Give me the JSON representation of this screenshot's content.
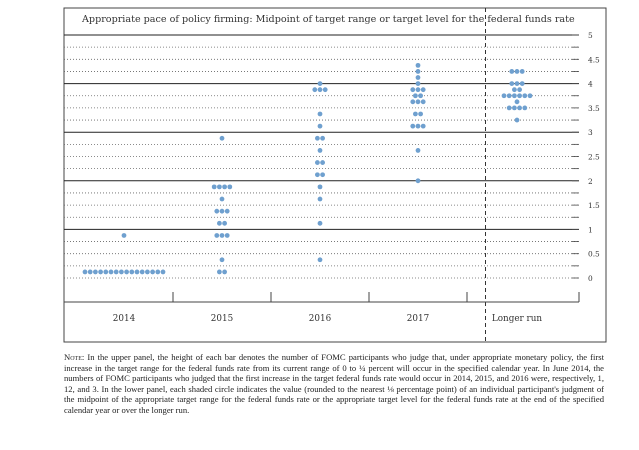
{
  "colors": {
    "dot": "#6fa0cf",
    "frame": "#444444",
    "grid_major": "#222222",
    "grid_minor": "#666666",
    "divider": "#333333",
    "text": "#333333"
  },
  "chart_data": {
    "type": "scatter",
    "title": "Appropriate pace of policy firming: Midpoint of target range or target level for the federal funds rate",
    "categories": [
      "2014",
      "2015",
      "2016",
      "2017",
      "Longer run"
    ],
    "y_ticks": [
      "0",
      "0.5",
      "1",
      "1.5",
      "2",
      "2.5",
      "3",
      "3.5",
      "4",
      "4.5",
      "5"
    ],
    "ylim": [
      0,
      5
    ],
    "grid": true,
    "divider_between": [
      "2017",
      "Longer run"
    ],
    "dots": {
      "2014": [
        {
          "y": 0.125,
          "n": 16
        },
        {
          "y": 0.875,
          "n": 1
        }
      ],
      "2015": [
        {
          "y": 0.125,
          "n": 2
        },
        {
          "y": 0.375,
          "n": 1
        },
        {
          "y": 0.875,
          "n": 3
        },
        {
          "y": 1.125,
          "n": 2
        },
        {
          "y": 1.375,
          "n": 3
        },
        {
          "y": 1.625,
          "n": 1
        },
        {
          "y": 1.875,
          "n": 4
        },
        {
          "y": 2.875,
          "n": 1
        }
      ],
      "2016": [
        {
          "y": 0.375,
          "n": 1
        },
        {
          "y": 1.125,
          "n": 1
        },
        {
          "y": 1.625,
          "n": 1
        },
        {
          "y": 1.875,
          "n": 1
        },
        {
          "y": 2.125,
          "n": 2
        },
        {
          "y": 2.375,
          "n": 2
        },
        {
          "y": 2.625,
          "n": 1
        },
        {
          "y": 2.875,
          "n": 2
        },
        {
          "y": 3.125,
          "n": 1
        },
        {
          "y": 3.375,
          "n": 1
        },
        {
          "y": 3.875,
          "n": 3
        },
        {
          "y": 4.0,
          "n": 1
        }
      ],
      "2017": [
        {
          "y": 2.0,
          "n": 1
        },
        {
          "y": 2.625,
          "n": 1
        },
        {
          "y": 3.125,
          "n": 3
        },
        {
          "y": 3.375,
          "n": 2
        },
        {
          "y": 3.625,
          "n": 3
        },
        {
          "y": 3.75,
          "n": 2
        },
        {
          "y": 3.875,
          "n": 3
        },
        {
          "y": 4.0,
          "n": 1
        },
        {
          "y": 4.125,
          "n": 1
        },
        {
          "y": 4.25,
          "n": 1
        },
        {
          "y": 4.375,
          "n": 1
        }
      ],
      "Longer run": [
        {
          "y": 3.25,
          "n": 1
        },
        {
          "y": 3.5,
          "n": 4
        },
        {
          "y": 3.625,
          "n": 1
        },
        {
          "y": 3.75,
          "n": 6
        },
        {
          "y": 3.875,
          "n": 2
        },
        {
          "y": 4.0,
          "n": 3
        },
        {
          "y": 4.25,
          "n": 3
        }
      ]
    }
  },
  "note": {
    "lead": "Note:",
    "text": "In the upper panel, the height of each bar denotes the number of FOMC participants who judge that, under appropriate monetary policy, the first increase in the target range for the federal funds rate from its current range of 0 to ¼ percent will occur in the specified calendar year. In June 2014, the numbers of FOMC participants who judged that the first increase in the target federal funds rate would occur in 2014, 2015, and 2016 were, respectively, 1, 12, and 3. In the lower panel, each shaded circle indicates the value (rounded to the nearest ⅛ percentage point) of an individual participant's judgment of the midpoint of the appropriate target range for the federal funds rate or the appropriate target level for the federal funds rate at the end of the specified calendar year or over the longer run."
  }
}
